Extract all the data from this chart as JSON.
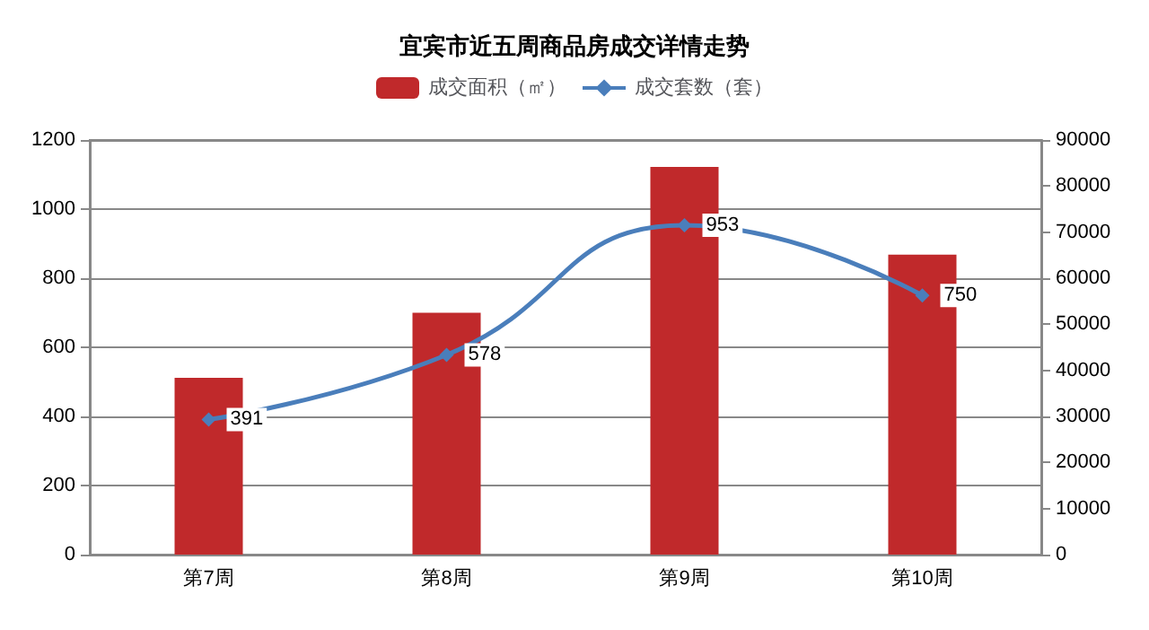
{
  "chart_data": {
    "type": "bar",
    "title": "宜宾市近五周商品房成交详情走势",
    "categories": [
      "第7周",
      "第8周",
      "第9周",
      "第10周"
    ],
    "series": [
      {
        "name": "成交面积（㎡）",
        "color": "#c0292b",
        "values": [
          512,
          700,
          1122,
          868
        ]
      },
      {
        "name": "成交套数（套）",
        "type": "line",
        "color": "#4a7ebb",
        "values": [
          391,
          578,
          953,
          750
        ],
        "value_labels": [
          "391",
          "578",
          "953",
          "750"
        ],
        "marker": "diamond"
      }
    ],
    "ylim": [
      0,
      1200
    ],
    "yticks": [
      0,
      200,
      400,
      600,
      800,
      1000,
      1200
    ],
    "y2lim": [
      0,
      90000
    ],
    "y2ticks": [
      0,
      10000,
      20000,
      30000,
      40000,
      50000,
      60000,
      70000,
      80000,
      90000
    ],
    "grid": "y",
    "legend": "top"
  }
}
